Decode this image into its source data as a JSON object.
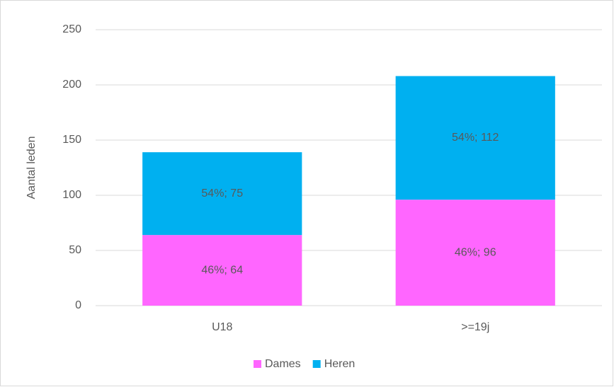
{
  "chart_data": {
    "type": "stacked_bar",
    "y_label": "Aantal leden",
    "categories": [
      "U18",
      ">=19j"
    ],
    "series": [
      {
        "name": "Dames",
        "color": "#ff66ff",
        "values": [
          64,
          96
        ],
        "value_labels": [
          "46%; 64",
          "46%; 96"
        ]
      },
      {
        "name": "Heren",
        "color": "#00b0f0",
        "values": [
          75,
          112
        ],
        "value_labels": [
          "54%; 75",
          "54%; 112"
        ]
      }
    ],
    "ylim": [
      0,
      250
    ],
    "yticks": [
      0,
      50,
      100,
      150,
      200,
      250
    ],
    "grid": true,
    "legend": "bottom"
  }
}
